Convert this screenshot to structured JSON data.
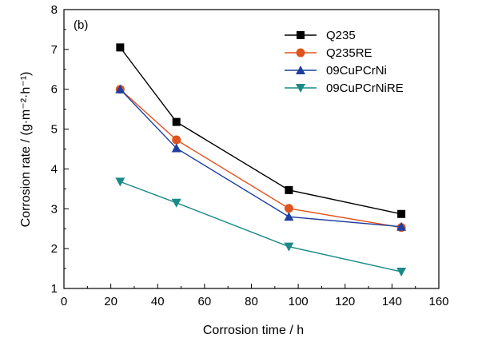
{
  "chart_data": {
    "type": "line",
    "panel_label": "(b)",
    "xlabel": "Corrosion time / h",
    "ylabel": "Corrosion rate / (g·m⁻²·h⁻¹)",
    "xlim": [
      0,
      160
    ],
    "ylim": [
      1,
      8
    ],
    "x_ticks": [
      0,
      20,
      40,
      60,
      80,
      100,
      120,
      140,
      160
    ],
    "y_ticks": [
      1,
      2,
      3,
      4,
      5,
      6,
      7,
      8
    ],
    "grid": false,
    "legend_position": "top-right",
    "x": [
      24,
      48,
      96,
      144
    ],
    "series": [
      {
        "name": "Q235",
        "values": [
          7.05,
          5.18,
          3.47,
          2.87
        ],
        "color": "#000000",
        "marker": "square"
      },
      {
        "name": "Q235RE",
        "values": [
          6.0,
          4.73,
          3.01,
          2.53
        ],
        "color": "#e0531f",
        "marker": "circle"
      },
      {
        "name": "09CuPCrNi",
        "values": [
          6.0,
          4.52,
          2.8,
          2.55
        ],
        "color": "#1f3f9e",
        "marker": "triangle-up"
      },
      {
        "name": "09CuPCrNiRE",
        "values": [
          3.68,
          3.15,
          2.05,
          1.42
        ],
        "color": "#1a8a87",
        "marker": "triangle-down"
      }
    ]
  }
}
